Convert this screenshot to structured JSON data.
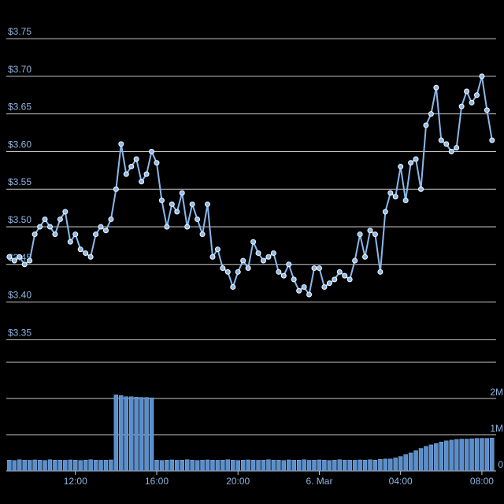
{
  "chart_data": [
    {
      "type": "line",
      "color": "#8ab8ec",
      "x": [
        8.75,
        9,
        9.25,
        9.5,
        9.75,
        10,
        10.25,
        10.5,
        10.75,
        11,
        11.25,
        11.5,
        11.75,
        12,
        12.25,
        12.5,
        12.75,
        13,
        13.25,
        13.5,
        13.75,
        14,
        14.25,
        14.5,
        14.75,
        15,
        15.25,
        15.5,
        15.75,
        16,
        16.25,
        16.5,
        16.75,
        17,
        17.25,
        17.5,
        17.75,
        18,
        18.25,
        18.5,
        18.75,
        19,
        19.25,
        19.5,
        19.75,
        20,
        20.25,
        20.5,
        20.75,
        21,
        21.25,
        21.5,
        21.75,
        22,
        22.25,
        22.5,
        22.75,
        23,
        23.25,
        23.5,
        23.75,
        24,
        24.25,
        24.5,
        24.75,
        25,
        25.25,
        25.5,
        25.75,
        26,
        26.25,
        26.5,
        26.75,
        27,
        27.25,
        27.5,
        27.75,
        28,
        28.25,
        28.5,
        28.75,
        29,
        29.25,
        29.5,
        29.75,
        30,
        30.25,
        30.5,
        30.75,
        31,
        31.25,
        31.5,
        31.75,
        32,
        32.25,
        32.5
      ],
      "values": [
        3.46,
        3.455,
        3.46,
        3.45,
        3.455,
        3.49,
        3.5,
        3.51,
        3.5,
        3.49,
        3.51,
        3.52,
        3.48,
        3.49,
        3.47,
        3.465,
        3.46,
        3.49,
        3.5,
        3.495,
        3.51,
        3.55,
        3.61,
        3.57,
        3.58,
        3.59,
        3.56,
        3.57,
        3.6,
        3.585,
        3.535,
        3.5,
        3.53,
        3.52,
        3.545,
        3.5,
        3.53,
        3.51,
        3.49,
        3.53,
        3.46,
        3.47,
        3.445,
        3.44,
        3.42,
        3.44,
        3.455,
        3.445,
        3.48,
        3.465,
        3.455,
        3.46,
        3.465,
        3.44,
        3.435,
        3.45,
        3.43,
        3.415,
        3.42,
        3.41,
        3.445,
        3.445,
        3.42,
        3.425,
        3.43,
        3.44,
        3.435,
        3.43,
        3.455,
        3.49,
        3.46,
        3.495,
        3.49,
        3.44,
        3.52,
        3.545,
        3.54,
        3.58,
        3.535,
        3.585,
        3.59,
        3.55,
        3.635,
        3.65,
        3.685,
        3.615,
        3.61,
        3.6,
        3.605,
        3.66,
        3.68,
        3.665,
        3.675,
        3.7,
        3.655,
        3.615
      ],
      "xlim": [
        8.6,
        32.7
      ],
      "ylim": [
        3.32,
        3.77
      ],
      "yticks": [
        {
          "value": 3.35,
          "label": "$3.35"
        },
        {
          "value": 3.4,
          "label": "$3.40"
        },
        {
          "value": 3.45,
          "label": "$3.45"
        },
        {
          "value": 3.5,
          "label": "$3.50"
        },
        {
          "value": 3.55,
          "label": "$3.55"
        },
        {
          "value": 3.6,
          "label": "$3.60"
        },
        {
          "value": 3.65,
          "label": "$3.65"
        },
        {
          "value": 3.7,
          "label": "$3.70"
        },
        {
          "value": 3.75,
          "label": "$3.75"
        }
      ],
      "grid": true
    },
    {
      "type": "bar",
      "color": "#5a8fcf",
      "x": [
        8.75,
        9,
        9.25,
        9.5,
        9.75,
        10,
        10.25,
        10.5,
        10.75,
        11,
        11.25,
        11.5,
        11.75,
        12,
        12.25,
        12.5,
        12.75,
        13,
        13.25,
        13.5,
        13.75,
        14,
        14.25,
        14.5,
        14.75,
        15,
        15.25,
        15.5,
        15.75,
        16,
        16.25,
        16.5,
        16.75,
        17,
        17.25,
        17.5,
        17.75,
        18,
        18.25,
        18.5,
        18.75,
        19,
        19.25,
        19.5,
        19.75,
        20,
        20.25,
        20.5,
        20.75,
        21,
        21.25,
        21.5,
        21.75,
        22,
        22.25,
        22.5,
        22.75,
        23,
        23.25,
        23.5,
        23.75,
        24,
        24.25,
        24.5,
        24.75,
        25,
        25.25,
        25.5,
        25.75,
        26,
        26.25,
        26.5,
        26.75,
        27,
        27.25,
        27.5,
        27.75,
        28,
        28.25,
        28.5,
        28.75,
        29,
        29.25,
        29.5,
        29.75,
        30,
        30.25,
        30.5,
        30.75,
        31,
        31.25,
        31.5,
        31.75,
        32,
        32.25,
        32.5
      ],
      "values": [
        300000,
        290000,
        310000,
        300000,
        295000,
        305000,
        300000,
        290000,
        310000,
        300000,
        300000,
        295000,
        305000,
        300000,
        290000,
        300000,
        310000,
        300000,
        295000,
        300000,
        305000,
        2100000,
        2080000,
        2050000,
        2050000,
        2040000,
        2030000,
        2030000,
        2020000,
        300000,
        290000,
        300000,
        305000,
        295000,
        300000,
        310000,
        300000,
        290000,
        300000,
        305000,
        300000,
        295000,
        300000,
        310000,
        300000,
        290000,
        300000,
        305000,
        300000,
        295000,
        300000,
        310000,
        300000,
        300000,
        290000,
        305000,
        300000,
        300000,
        310000,
        295000,
        300000,
        305000,
        300000,
        290000,
        300000,
        310000,
        300000,
        300000,
        295000,
        305000,
        300000,
        310000,
        300000,
        320000,
        330000,
        330000,
        360000,
        400000,
        450000,
        500000,
        560000,
        620000,
        680000,
        720000,
        760000,
        800000,
        830000,
        850000,
        870000,
        880000,
        880000,
        890000,
        900000,
        900000,
        900000,
        910000
      ],
      "xlim": [
        8.6,
        32.7
      ],
      "ylim": [
        0,
        3000000
      ],
      "yticks": [
        0,
        {
          "value": 1000000,
          "label": "1M"
        },
        {
          "value": 2000000,
          "label": "2M"
        }
      ],
      "xticks": [
        {
          "value": 12,
          "label": "12:00"
        },
        {
          "value": 16,
          "label": "16:00"
        },
        {
          "value": 20,
          "label": "20:00"
        },
        {
          "value": 24,
          "label": "6. Mar"
        },
        {
          "value": 28,
          "label": "04:00"
        },
        {
          "value": 32,
          "label": "08:00"
        }
      ],
      "grid": true
    }
  ]
}
